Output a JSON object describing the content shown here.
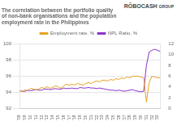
{
  "chart_data": {
    "type": "line",
    "title": [
      "The correlation between the portfolio quality",
      "of non-bank organisations and the population",
      "employment rate in the Philippines"
    ],
    "annotations": [
      "RÖBOCASH",
      "GROUP"
    ],
    "categories": [
      "'08",
      null,
      "'09",
      null,
      "'10",
      null,
      "'11",
      null,
      "'12",
      null,
      "'13",
      null,
      "'14",
      null,
      "'15",
      null,
      "'16",
      null,
      "'17",
      null,
      "'18",
      null,
      "'19",
      null,
      "'20",
      null,
      "'21",
      null,
      "'22",
      null,
      "'23",
      null,
      "'24",
      null,
      "'25",
      null,
      "'26",
      null,
      "'27",
      null,
      "'28",
      null,
      "'29",
      null,
      "'30",
      null,
      "'31",
      null,
      "'32",
      null,
      "'33",
      null
    ],
    "series": [
      {
        "name": "Employment rate, %",
        "color": "#E8A020",
        "axis": "y",
        "values": [
          94.2,
          94.1,
          94.3,
          94.2,
          94.5,
          94.4,
          94.3,
          94.4,
          94.6,
          94.5,
          94.7,
          94.5,
          94.6,
          94.8,
          94.7,
          94.5,
          94.8,
          95.0,
          94.9,
          95.0,
          94.9,
          95.1,
          95.0,
          94.9,
          95.1,
          95.2,
          95.1,
          95.3,
          95.4,
          95.3,
          95.5,
          95.5,
          95.4,
          95.6,
          95.5,
          95.7,
          95.6,
          95.8,
          95.7,
          95.9,
          95.8,
          96.0,
          96.0,
          96.0,
          95.9,
          95.8,
          92.8,
          95.2,
          96.0,
          95.9,
          95.8,
          95.8
        ]
      },
      {
        "name": "NPL Ratio, %",
        "color": "#8B2FC9",
        "axis": "y2",
        "values": [
          3.3,
          3.2,
          3.2,
          3.4,
          3.3,
          3.4,
          3.5,
          3.4,
          3.4,
          3.6,
          3.6,
          3.5,
          3.6,
          3.7,
          3.6,
          3.6,
          3.8,
          3.7,
          3.7,
          3.8,
          3.7,
          3.7,
          3.9,
          3.8,
          3.8,
          3.9,
          3.8,
          3.8,
          3.7,
          3.8,
          3.7,
          3.6,
          3.5,
          3.4,
          3.4,
          3.3,
          3.4,
          3.3,
          3.2,
          3.3,
          3.4,
          3.5,
          3.3,
          3.2,
          3.1,
          3.2,
          8.0,
          10.5,
          10.8,
          11.0,
          10.8,
          10.6
        ]
      }
    ],
    "ylim": [
      92,
      100
    ],
    "yticks": [
      92,
      94,
      96,
      98,
      100
    ],
    "y2lim": [
      0,
      12
    ],
    "y2ticks": [
      0,
      2,
      4,
      6,
      8,
      10,
      12
    ],
    "grid": true,
    "legend": "top"
  }
}
